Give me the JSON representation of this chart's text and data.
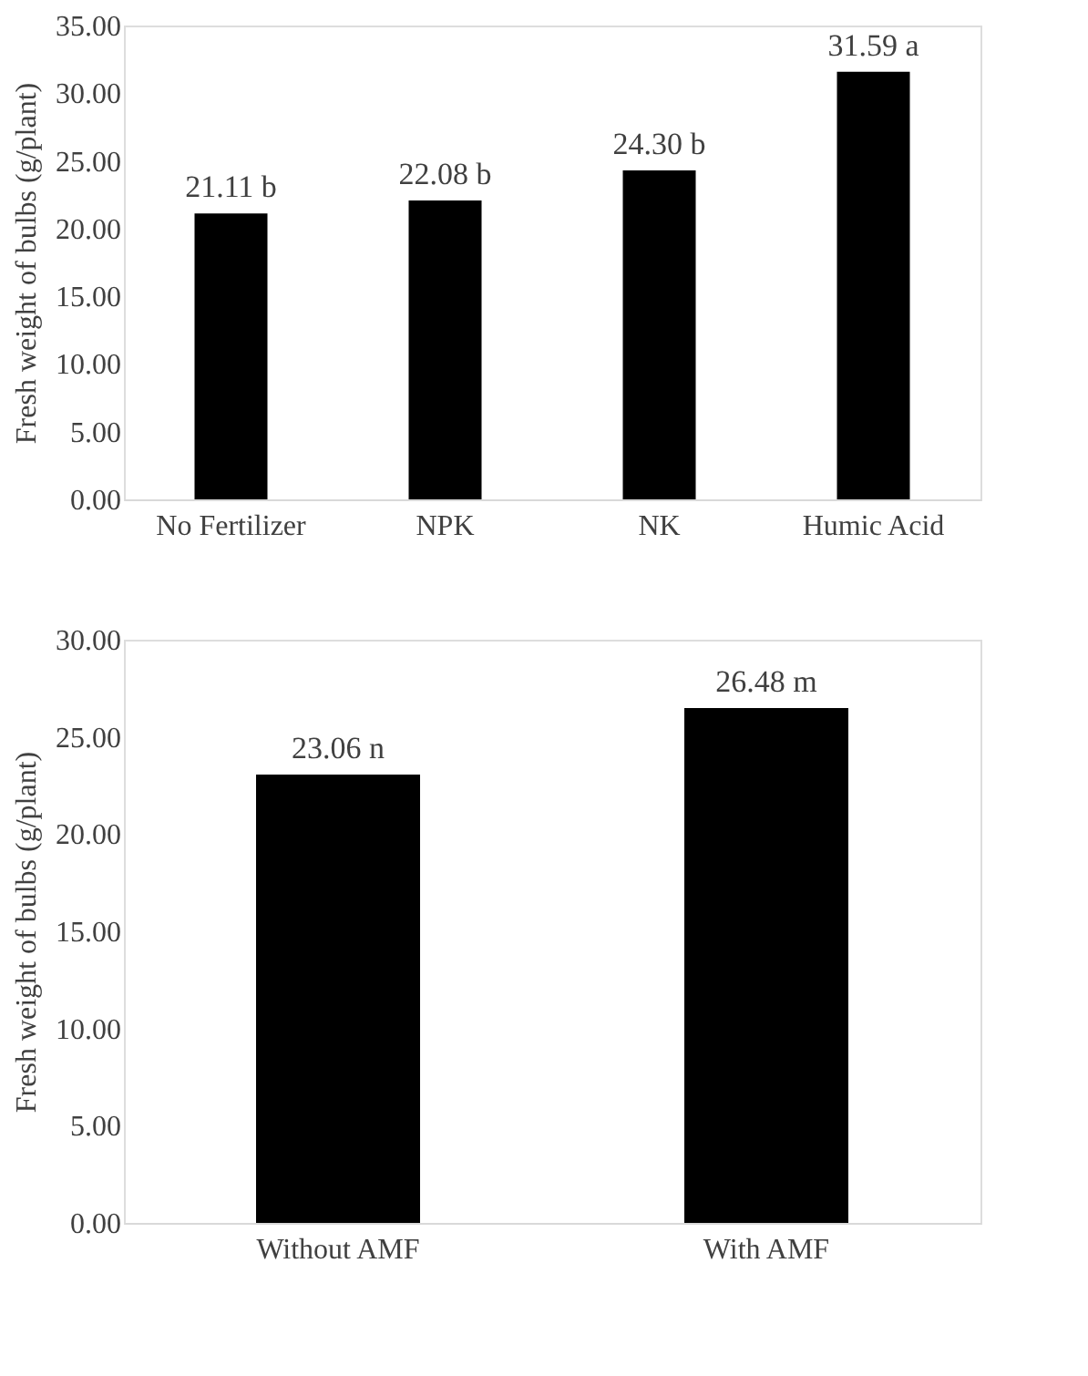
{
  "chart_data": [
    {
      "type": "bar",
      "ylabel": "Fresh weight of bulbs (g/plant)",
      "categories": [
        "No Fertilizer",
        "NPK",
        "NK",
        "Humic Acid"
      ],
      "values": [
        21.11,
        22.08,
        24.3,
        31.59
      ],
      "color": "#000000",
      "value_labels": [
        "21.11 b",
        "22.08 b",
        "24.30 b",
        "31.59 a"
      ],
      "ylim": [
        0,
        35
      ],
      "yticks": [
        {
          "value": 0,
          "label": "0.00"
        },
        {
          "value": 5,
          "label": "5.00"
        },
        {
          "value": 10,
          "label": "10.00"
        },
        {
          "value": 15,
          "label": "15.00"
        },
        {
          "value": 20,
          "label": "20.00"
        },
        {
          "value": 25,
          "label": "25.00"
        },
        {
          "value": 30,
          "label": "30.00"
        },
        {
          "value": 35,
          "label": "35.00"
        }
      ],
      "grid": false
    },
    {
      "type": "bar",
      "ylabel": "Fresh weight of bulbs (g/plant)",
      "categories": [
        "Without AMF",
        "With AMF"
      ],
      "values": [
        23.06,
        26.48
      ],
      "color": "#000000",
      "value_labels": [
        "23.06 n",
        "26.48 m"
      ],
      "ylim": [
        0,
        30
      ],
      "yticks": [
        {
          "value": 0,
          "label": "0.00"
        },
        {
          "value": 5,
          "label": "5.00"
        },
        {
          "value": 10,
          "label": "10.00"
        },
        {
          "value": 15,
          "label": "15.00"
        },
        {
          "value": 20,
          "label": "20.00"
        },
        {
          "value": 25,
          "label": "25.00"
        },
        {
          "value": 30,
          "label": "30.00"
        }
      ],
      "grid": false
    }
  ]
}
